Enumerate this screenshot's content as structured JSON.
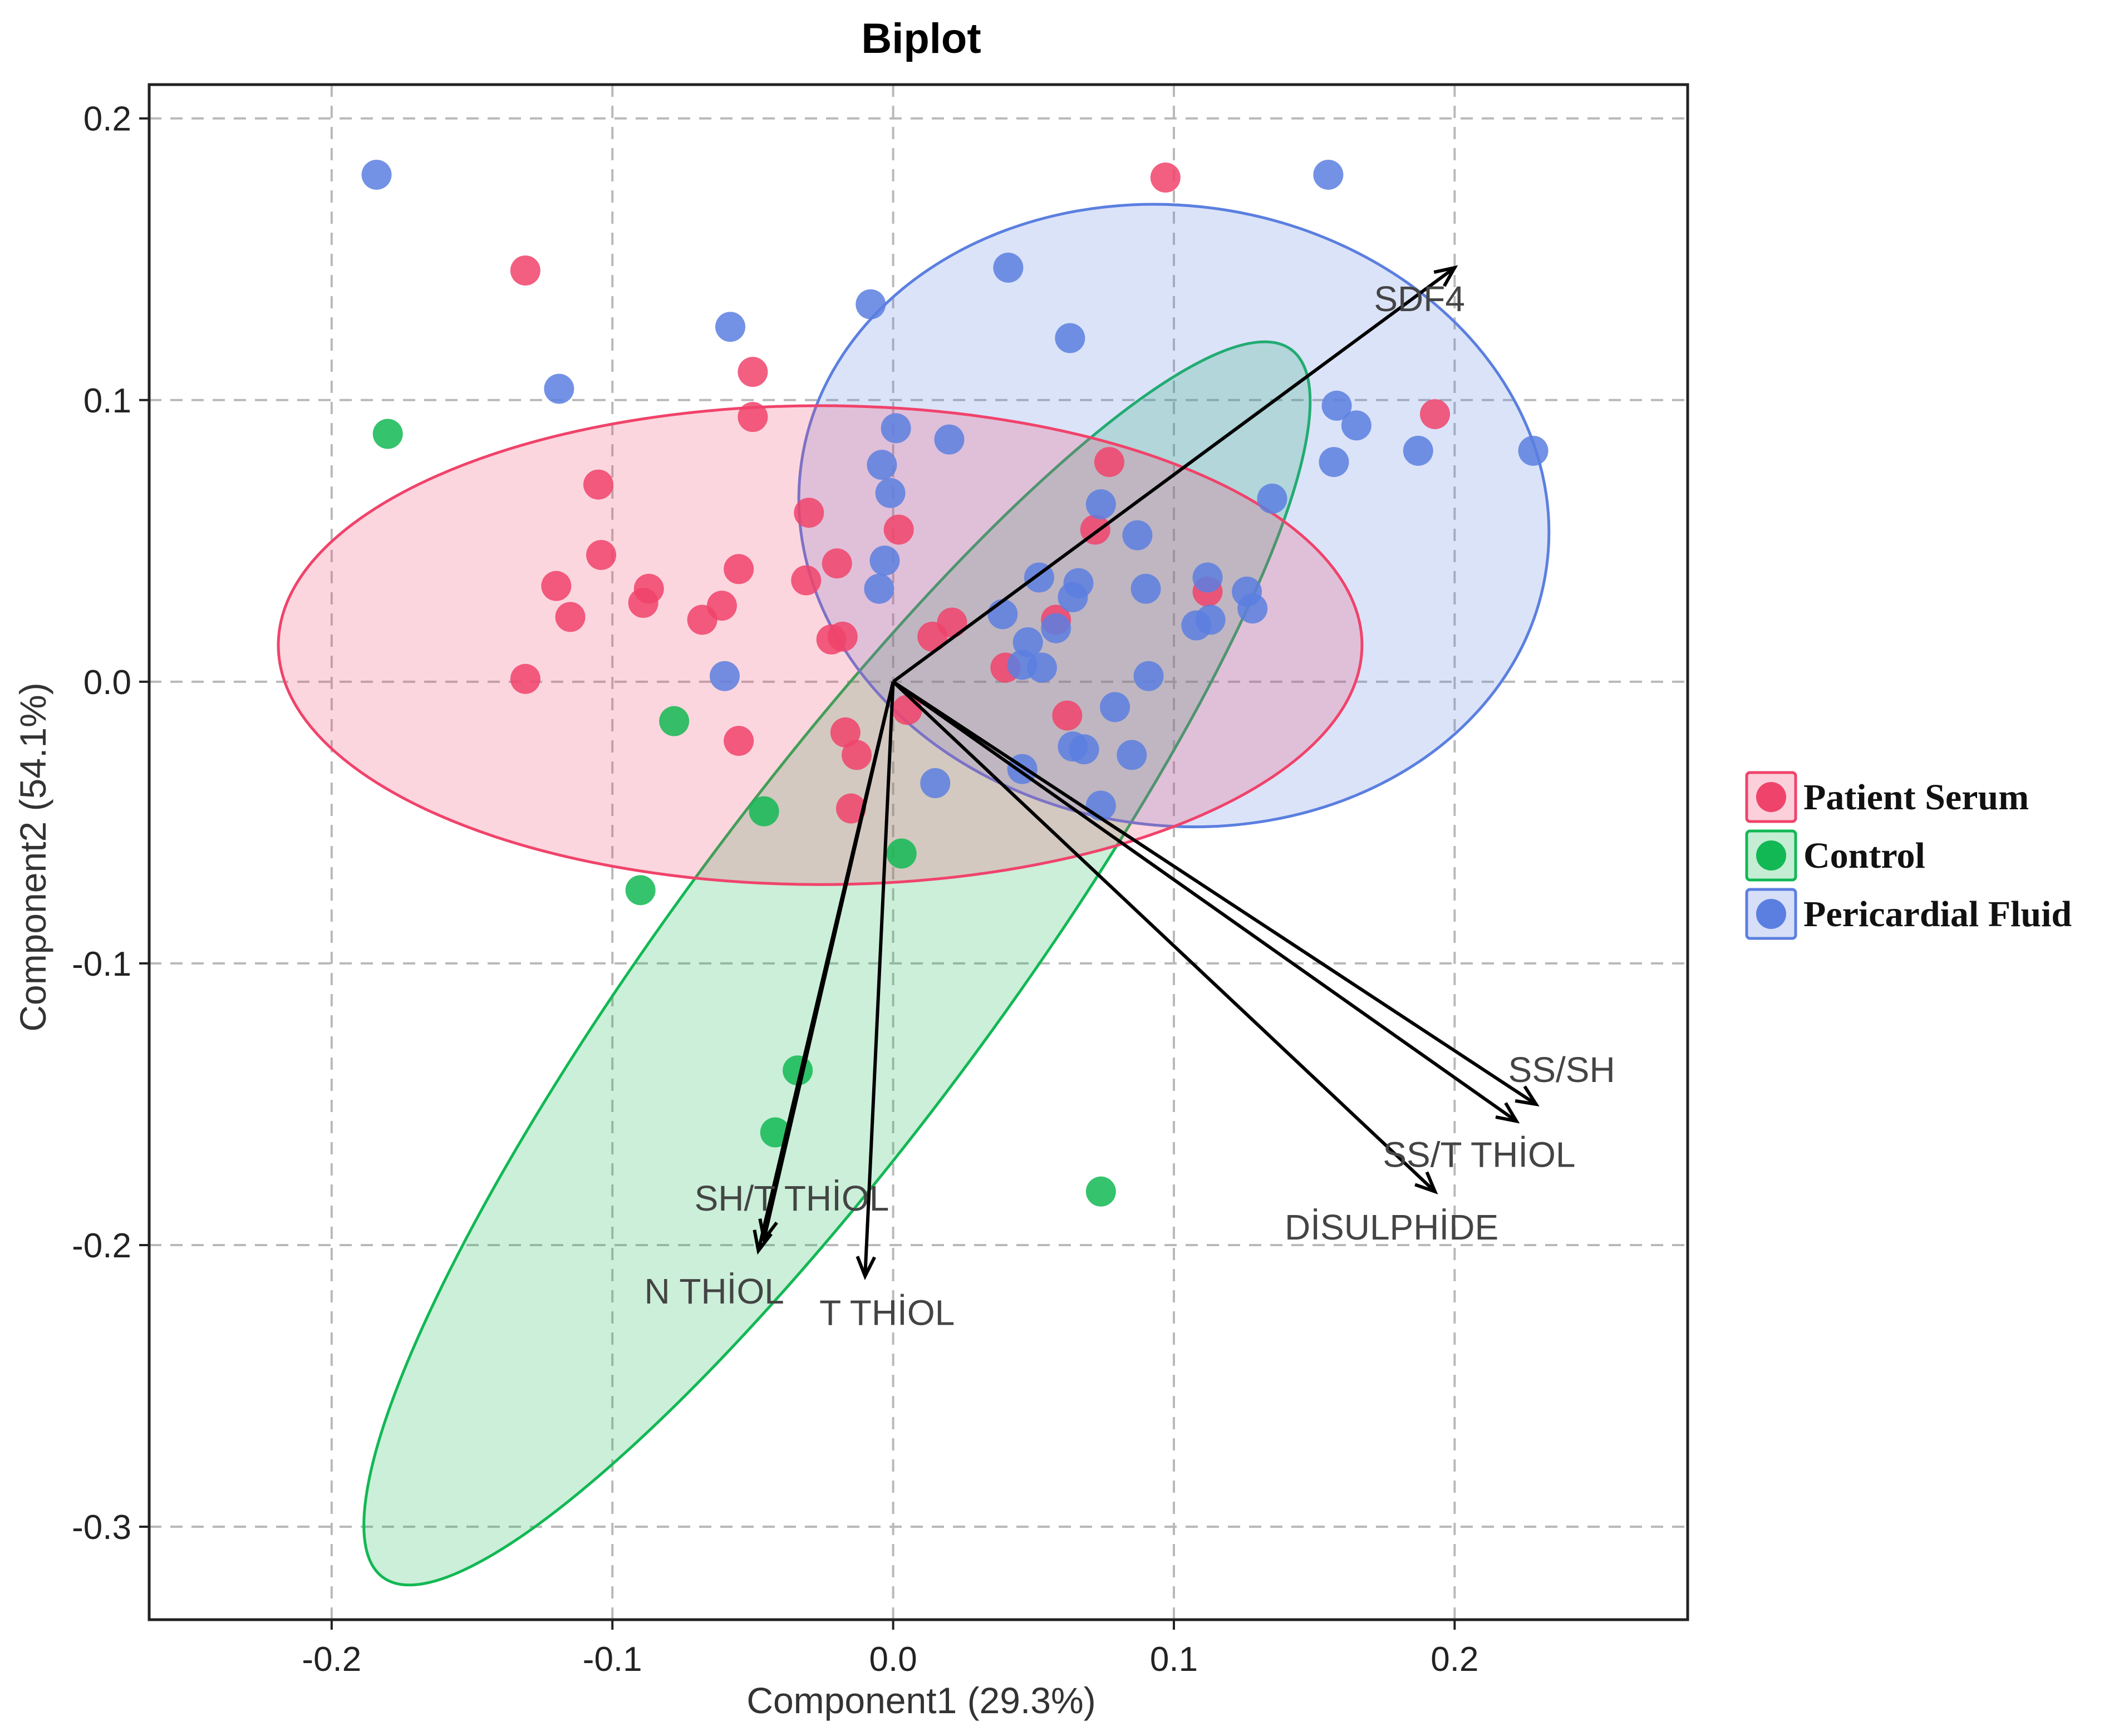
{
  "chart_data": {
    "type": "scatter",
    "title": "Biplot",
    "xlabel": "Component1 (29.3%)",
    "ylabel": "Component2 (54.1%)",
    "xlim": [
      -0.265,
      0.283
    ],
    "ylim": [
      -0.333,
      0.212
    ],
    "grid": true,
    "x_ticks": [
      -0.2,
      -0.1,
      0.0,
      0.1,
      0.2
    ],
    "x_tick_labels": [
      "-0.2",
      "-0.1",
      "0.0",
      "0.1",
      "0.2"
    ],
    "y_ticks": [
      0.2,
      0.1,
      0.0,
      -0.1,
      -0.2,
      -0.3
    ],
    "y_tick_labels": [
      "0.2",
      "0.1",
      "0.0",
      "-0.1",
      "-0.2",
      "-0.3"
    ],
    "legend_position": "right",
    "series": [
      {
        "name": "Patient Serum",
        "color": "#f0436b",
        "points": [
          [
            -0.131,
            0.146
          ],
          [
            0.097,
            0.179
          ],
          [
            -0.05,
            0.11
          ],
          [
            -0.05,
            0.094
          ],
          [
            -0.105,
            0.07
          ],
          [
            -0.104,
            0.045
          ],
          [
            -0.12,
            0.034
          ],
          [
            -0.115,
            0.023
          ],
          [
            -0.087,
            0.033
          ],
          [
            -0.089,
            0.028
          ],
          [
            -0.061,
            0.027
          ],
          [
            -0.068,
            0.022
          ],
          [
            -0.055,
            0.04
          ],
          [
            -0.03,
            0.06
          ],
          [
            -0.02,
            0.042
          ],
          [
            -0.031,
            0.036
          ],
          [
            -0.018,
            0.016
          ],
          [
            -0.022,
            0.015
          ],
          [
            0.002,
            0.054
          ],
          [
            0.014,
            0.016
          ],
          [
            0.021,
            0.021
          ],
          [
            0.04,
            0.005
          ],
          [
            0.058,
            0.022
          ],
          [
            0.077,
            0.078
          ],
          [
            0.072,
            0.054
          ],
          [
            0.112,
            0.032
          ],
          [
            0.193,
            0.095
          ],
          [
            -0.131,
            0.001
          ],
          [
            -0.055,
            -0.021
          ],
          [
            -0.017,
            -0.018
          ],
          [
            -0.013,
            -0.026
          ],
          [
            -0.015,
            -0.045
          ],
          [
            0.005,
            -0.01
          ],
          [
            0.062,
            -0.012
          ]
        ]
      },
      {
        "name": "Control",
        "color": "#12b854",
        "points": [
          [
            -0.18,
            0.088
          ],
          [
            -0.078,
            -0.014
          ],
          [
            -0.046,
            -0.046
          ],
          [
            -0.09,
            -0.074
          ],
          [
            0.003,
            -0.061
          ],
          [
            -0.034,
            -0.138
          ],
          [
            -0.042,
            -0.16
          ],
          [
            0.074,
            -0.181
          ]
        ]
      },
      {
        "name": "Pericardial Fluid",
        "color": "#5b7fe0",
        "points": [
          [
            -0.184,
            0.18
          ],
          [
            0.155,
            0.18
          ],
          [
            0.041,
            0.147
          ],
          [
            -0.008,
            0.134
          ],
          [
            -0.058,
            0.126
          ],
          [
            0.063,
            0.122
          ],
          [
            -0.119,
            0.104
          ],
          [
            0.158,
            0.098
          ],
          [
            0.165,
            0.091
          ],
          [
            0.187,
            0.082
          ],
          [
            0.228,
            0.082
          ],
          [
            0.157,
            0.078
          ],
          [
            0.001,
            0.09
          ],
          [
            0.02,
            0.086
          ],
          [
            -0.004,
            0.077
          ],
          [
            -0.001,
            0.067
          ],
          [
            0.074,
            0.063
          ],
          [
            0.135,
            0.065
          ],
          [
            0.087,
            0.052
          ],
          [
            -0.003,
            0.043
          ],
          [
            -0.005,
            0.033
          ],
          [
            0.052,
            0.037
          ],
          [
            0.066,
            0.035
          ],
          [
            0.064,
            0.03
          ],
          [
            0.09,
            0.033
          ],
          [
            0.112,
            0.037
          ],
          [
            0.126,
            0.032
          ],
          [
            0.128,
            0.026
          ],
          [
            0.113,
            0.022
          ],
          [
            0.108,
            0.02
          ],
          [
            0.039,
            0.024
          ],
          [
            0.048,
            0.014
          ],
          [
            0.058,
            0.019
          ],
          [
            0.046,
            0.006
          ],
          [
            0.053,
            0.005
          ],
          [
            0.091,
            0.002
          ],
          [
            -0.06,
            0.002
          ],
          [
            0.079,
            -0.009
          ],
          [
            0.064,
            -0.023
          ],
          [
            0.068,
            -0.024
          ],
          [
            0.085,
            -0.026
          ],
          [
            0.046,
            -0.031
          ],
          [
            0.074,
            -0.044
          ],
          [
            0.015,
            -0.036
          ]
        ]
      }
    ],
    "ellipses": [
      {
        "series": "Control",
        "center": [
          -0.02,
          -0.1
        ],
        "semi_axes": [
          0.272,
          0.0585
        ],
        "rotation_deg": 53.5
      },
      {
        "series": "Pericardial Fluid",
        "center": [
          0.1,
          0.059
        ],
        "semi_axes": [
          0.134,
          0.11
        ],
        "rotation_deg": -8
      },
      {
        "series": "Patient Serum",
        "center": [
          -0.026,
          0.013
        ],
        "semi_axes": [
          0.193,
          0.085
        ],
        "rotation_deg": 0
      }
    ],
    "loadings": [
      {
        "label": "SDF4",
        "x": 0.2,
        "y": 0.147
      },
      {
        "label": "SS/SH",
        "x": 0.229,
        "y": -0.15
      },
      {
        "label": "SS/T THİOL",
        "x": 0.222,
        "y": -0.156
      },
      {
        "label": "DİSULPHİDE",
        "x": 0.193,
        "y": -0.181
      },
      {
        "label": "SH/T THİOL",
        "x": -0.046,
        "y": -0.198
      },
      {
        "label": "N THİOL",
        "x": -0.048,
        "y": -0.202
      },
      {
        "label": "T THİOL",
        "x": -0.01,
        "y": -0.211
      }
    ]
  }
}
